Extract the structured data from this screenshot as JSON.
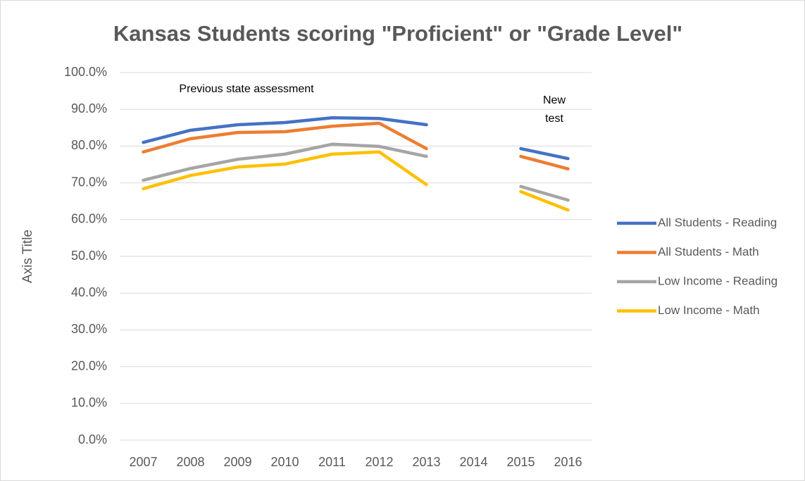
{
  "chart_data": {
    "type": "line",
    "title": "Kansas Students scoring \"Proficient\" or \"Grade Level\"",
    "y_label": "Axis Title",
    "annotations": [
      "Previous state assessment",
      "New test"
    ],
    "categories": [
      "2007",
      "2008",
      "2009",
      "2010",
      "2011",
      "2012",
      "2013",
      "2014",
      "2015",
      "2016"
    ],
    "series": [
      {
        "name": "All Students - Reading",
        "color": "#4472c4",
        "values": [
          81.0,
          84.3,
          85.8,
          86.4,
          87.7,
          87.5,
          85.8,
          null,
          79.3,
          76.6
        ]
      },
      {
        "name": "All Students - Math",
        "color": "#ed7d31",
        "values": [
          78.4,
          82.0,
          83.7,
          83.9,
          85.4,
          86.2,
          79.3,
          null,
          77.2,
          73.8
        ]
      },
      {
        "name": "Low Income - Reading",
        "color": "#a5a5a5",
        "values": [
          70.7,
          73.9,
          76.4,
          77.8,
          80.5,
          79.9,
          77.2,
          null,
          69.0,
          65.3
        ]
      },
      {
        "name": "Low Income - Math",
        "color": "#ffc000",
        "values": [
          68.4,
          72.0,
          74.3,
          75.1,
          77.8,
          78.4,
          69.5,
          null,
          67.6,
          62.6
        ]
      }
    ],
    "ylim": [
      0,
      100
    ],
    "yticks": [
      {
        "value": 0,
        "label": "0.0%"
      },
      {
        "value": 10,
        "label": "10.0%"
      },
      {
        "value": 20,
        "label": "20.0%"
      },
      {
        "value": 30,
        "label": "30.0%"
      },
      {
        "value": 40,
        "label": "40.0%"
      },
      {
        "value": 50,
        "label": "50.0%"
      },
      {
        "value": 60,
        "label": "60.0%"
      },
      {
        "value": 70,
        "label": "70.0%"
      },
      {
        "value": 80,
        "label": "80.0%"
      },
      {
        "value": 90,
        "label": "90.0%"
      },
      {
        "value": 100,
        "label": "100.0%"
      }
    ],
    "grid": true,
    "legend": "right"
  }
}
